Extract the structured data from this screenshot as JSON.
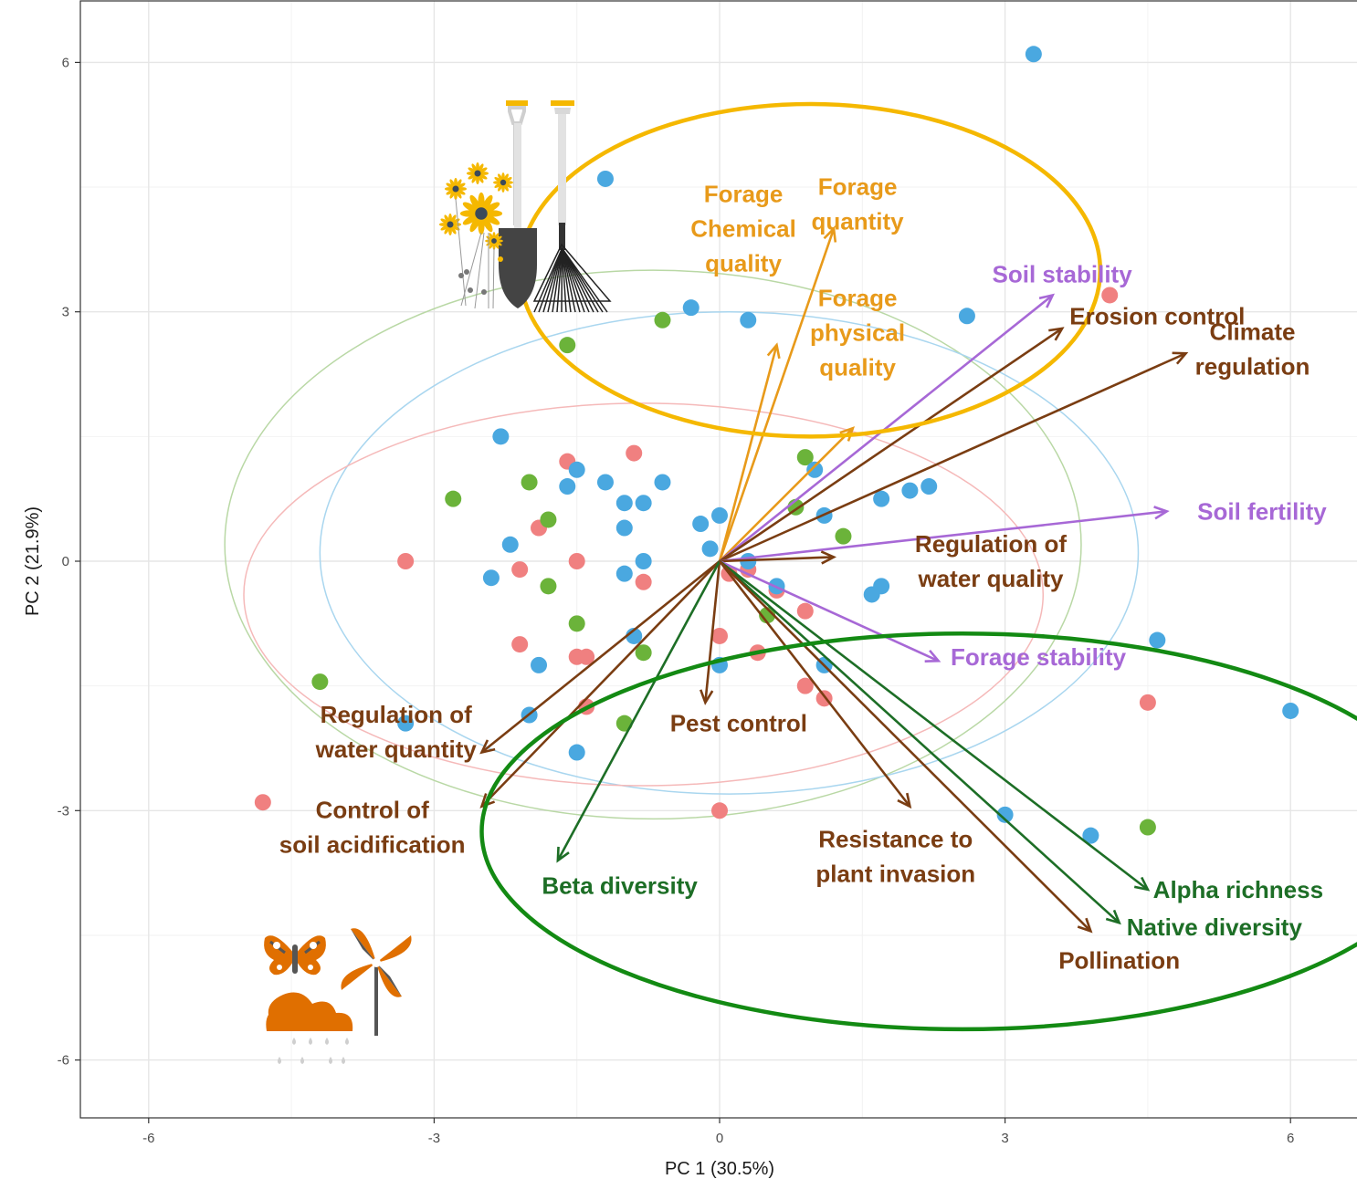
{
  "chart_data": {
    "type": "biplot",
    "title": "",
    "xlabel": "PC 1 (30.5%)",
    "ylabel": "PC 2 (21.9%)",
    "xlim": [
      -6.7,
      6.7
    ],
    "ylim": [
      -6.7,
      6.7
    ],
    "xticks": [
      -6,
      -3,
      0,
      3,
      6
    ],
    "yticks": [
      -6,
      -3,
      0,
      3,
      6
    ],
    "grid": true,
    "legend": "none",
    "colors": {
      "red": "#f08080",
      "blue": "#4aa8e0",
      "green": "#6bb33a",
      "provisioning": "#e89a1a",
      "supporting": "#a768d6",
      "regulating": "#7a3d12",
      "biodiversity": "#1d6e26",
      "highlight_provisioning": "#f5b800",
      "highlight_biodiversity": "#138a13",
      "icon_orange": "#e06f00"
    },
    "ellipses": [
      {
        "group": "green",
        "center": [
          -0.7,
          0.2
        ],
        "rx": 4.5,
        "ry": 3.3
      },
      {
        "group": "blue",
        "center": [
          0.1,
          0.1
        ],
        "rx": 4.3,
        "ry": 2.9
      },
      {
        "group": "red",
        "center": [
          -0.8,
          -0.4
        ],
        "rx": 4.2,
        "ry": 2.3
      }
    ],
    "points": {
      "blue": [
        [
          3.3,
          6.1
        ],
        [
          -1.2,
          4.6
        ],
        [
          -0.3,
          3.05
        ],
        [
          0.3,
          2.9
        ],
        [
          2.6,
          2.95
        ],
        [
          -2.3,
          1.5
        ],
        [
          -1.5,
          1.1
        ],
        [
          -1.6,
          0.9
        ],
        [
          -1.2,
          0.95
        ],
        [
          -0.6,
          0.95
        ],
        [
          -1.0,
          0.7
        ],
        [
          -0.8,
          0.7
        ],
        [
          -1.0,
          0.4
        ],
        [
          -0.2,
          0.45
        ],
        [
          0.0,
          0.55
        ],
        [
          1.0,
          1.1
        ],
        [
          1.1,
          0.55
        ],
        [
          1.7,
          0.75
        ],
        [
          2.0,
          0.85
        ],
        [
          2.2,
          0.9
        ],
        [
          -2.2,
          0.2
        ],
        [
          -2.4,
          -0.2
        ],
        [
          -0.8,
          0.0
        ],
        [
          -1.0,
          -0.15
        ],
        [
          -0.1,
          0.15
        ],
        [
          0.3,
          0.0
        ],
        [
          0.6,
          -0.3
        ],
        [
          1.7,
          -0.3
        ],
        [
          1.6,
          -0.4
        ],
        [
          -0.9,
          -0.9
        ],
        [
          -1.9,
          -1.25
        ],
        [
          0.0,
          -1.25
        ],
        [
          1.1,
          -1.25
        ],
        [
          -2.0,
          -1.85
        ],
        [
          -1.5,
          -2.3
        ],
        [
          -3.3,
          -1.95
        ],
        [
          3.0,
          -3.05
        ],
        [
          3.9,
          -3.3
        ],
        [
          4.6,
          -0.95
        ],
        [
          6.0,
          -1.8
        ]
      ],
      "red": [
        [
          4.1,
          3.2
        ],
        [
          -1.6,
          1.2
        ],
        [
          -0.9,
          1.3
        ],
        [
          -1.9,
          0.4
        ],
        [
          -3.3,
          0.0
        ],
        [
          -1.5,
          0.0
        ],
        [
          -2.1,
          -0.1
        ],
        [
          -0.8,
          -0.25
        ],
        [
          0.1,
          -0.15
        ],
        [
          0.3,
          -0.1
        ],
        [
          0.6,
          -0.35
        ],
        [
          0.9,
          -0.6
        ],
        [
          -2.1,
          -1.0
        ],
        [
          -1.5,
          -1.15
        ],
        [
          -1.4,
          -1.15
        ],
        [
          0.0,
          -0.9
        ],
        [
          0.4,
          -1.1
        ],
        [
          0.9,
          -1.5
        ],
        [
          1.1,
          -1.65
        ],
        [
          -1.4,
          -1.75
        ],
        [
          0.0,
          -3.0
        ],
        [
          4.5,
          -1.7
        ],
        [
          -4.8,
          -2.9
        ]
      ],
      "green": [
        [
          -0.6,
          2.9
        ],
        [
          -1.6,
          2.6
        ],
        [
          -2.0,
          0.95
        ],
        [
          -2.8,
          0.75
        ],
        [
          -1.8,
          0.5
        ],
        [
          -1.8,
          -0.3
        ],
        [
          -1.5,
          -0.75
        ],
        [
          -0.8,
          -1.1
        ],
        [
          -1.0,
          -1.95
        ],
        [
          0.5,
          -0.65
        ],
        [
          0.8,
          0.65
        ],
        [
          0.9,
          1.25
        ],
        [
          1.3,
          0.3
        ],
        [
          -4.2,
          -1.45
        ],
        [
          4.5,
          -3.2
        ]
      ]
    },
    "vectors": [
      {
        "label": "Forage quantity",
        "lines": [
          "Forage",
          "quantity"
        ],
        "group": "provisioning",
        "end": [
          1.2,
          4.0
        ],
        "label_at": [
          1.45,
          4.3
        ]
      },
      {
        "label": "Forage Chemical quality",
        "lines": [
          "Forage",
          "Chemical",
          "quality"
        ],
        "group": "provisioning",
        "end": [
          0.6,
          2.6
        ],
        "label_at": [
          0.25,
          4.0
        ]
      },
      {
        "label": "Forage physical quality",
        "lines": [
          "Forage",
          "physical",
          "quality"
        ],
        "group": "provisioning",
        "end": [
          1.4,
          1.6
        ],
        "label_at": [
          1.45,
          2.75
        ]
      },
      {
        "label": "Soil stability",
        "lines": [
          "Soil stability"
        ],
        "group": "supporting",
        "end": [
          3.5,
          3.2
        ],
        "label_at": [
          3.6,
          3.45
        ]
      },
      {
        "label": "Erosion control",
        "lines": [
          "Erosion control"
        ],
        "group": "regulating",
        "end": [
          3.6,
          2.8
        ],
        "label_at": [
          4.6,
          2.95
        ]
      },
      {
        "label": "Climate regulation",
        "lines": [
          "Climate",
          "regulation"
        ],
        "group": "regulating",
        "end": [
          4.9,
          2.5
        ],
        "label_at": [
          5.6,
          2.55
        ]
      },
      {
        "label": "Soil fertility",
        "lines": [
          "Soil fertility"
        ],
        "group": "supporting",
        "end": [
          4.7,
          0.6
        ],
        "label_at": [
          5.7,
          0.6
        ]
      },
      {
        "label": "Regulation of water quality",
        "lines": [
          "Regulation of",
          "water quality"
        ],
        "group": "regulating",
        "end": [
          1.2,
          0.05
        ],
        "label_at": [
          2.85,
          0.0
        ]
      },
      {
        "label": "Forage stability",
        "lines": [
          "Forage stability"
        ],
        "group": "supporting",
        "end": [
          2.3,
          -1.2
        ],
        "label_at": [
          3.35,
          -1.15
        ]
      },
      {
        "label": "Pest control",
        "lines": [
          "Pest control"
        ],
        "group": "regulating",
        "end": [
          -0.15,
          -1.7
        ],
        "label_at": [
          0.2,
          -1.95
        ]
      },
      {
        "label": "Regulation of water quantity",
        "lines": [
          "Regulation of",
          "water quantity"
        ],
        "group": "regulating",
        "end": [
          -2.5,
          -2.3
        ],
        "label_at": [
          -3.4,
          -2.05
        ]
      },
      {
        "label": "Control of soil acidification",
        "lines": [
          "Control of",
          "soil acidification"
        ],
        "group": "regulating",
        "end": [
          -2.5,
          -2.95
        ],
        "label_at": [
          -3.65,
          -3.2
        ]
      },
      {
        "label": "Beta diversity",
        "lines": [
          "Beta diversity"
        ],
        "group": "biodiversity",
        "end": [
          -1.7,
          -3.6
        ],
        "label_at": [
          -1.05,
          -3.9
        ]
      },
      {
        "label": "Resistance to plant invasion",
        "lines": [
          "Resistance to",
          "plant invasion"
        ],
        "group": "regulating",
        "end": [
          2.0,
          -2.95
        ],
        "label_at": [
          1.85,
          -3.55
        ]
      },
      {
        "label": "Alpha richness",
        "lines": [
          "Alpha richness"
        ],
        "group": "biodiversity",
        "end": [
          4.5,
          -3.95
        ],
        "label_at": [
          5.45,
          -3.95
        ]
      },
      {
        "label": "Native diversity",
        "lines": [
          "Native diversity"
        ],
        "group": "biodiversity",
        "end": [
          4.2,
          -4.35
        ],
        "label_at": [
          5.2,
          -4.4
        ]
      },
      {
        "label": "Pollination",
        "lines": [
          "Pollination"
        ],
        "group": "regulating",
        "end": [
          3.9,
          -4.45
        ],
        "label_at": [
          4.2,
          -4.8
        ]
      }
    ],
    "highlights": [
      {
        "name": "provisioning-highlight",
        "color": "highlight_provisioning",
        "center": [
          0.95,
          3.5
        ],
        "rx": 3.05,
        "ry": 2.0
      },
      {
        "name": "biodiversity-highlight",
        "color": "highlight_biodiversity",
        "center": [
          2.55,
          -3.25
        ],
        "rx": 5.05,
        "ry": 2.38
      }
    ],
    "icons": [
      "shovel-rake-flowers-icon",
      "butterfly-pinwheel-rain-icon"
    ]
  }
}
